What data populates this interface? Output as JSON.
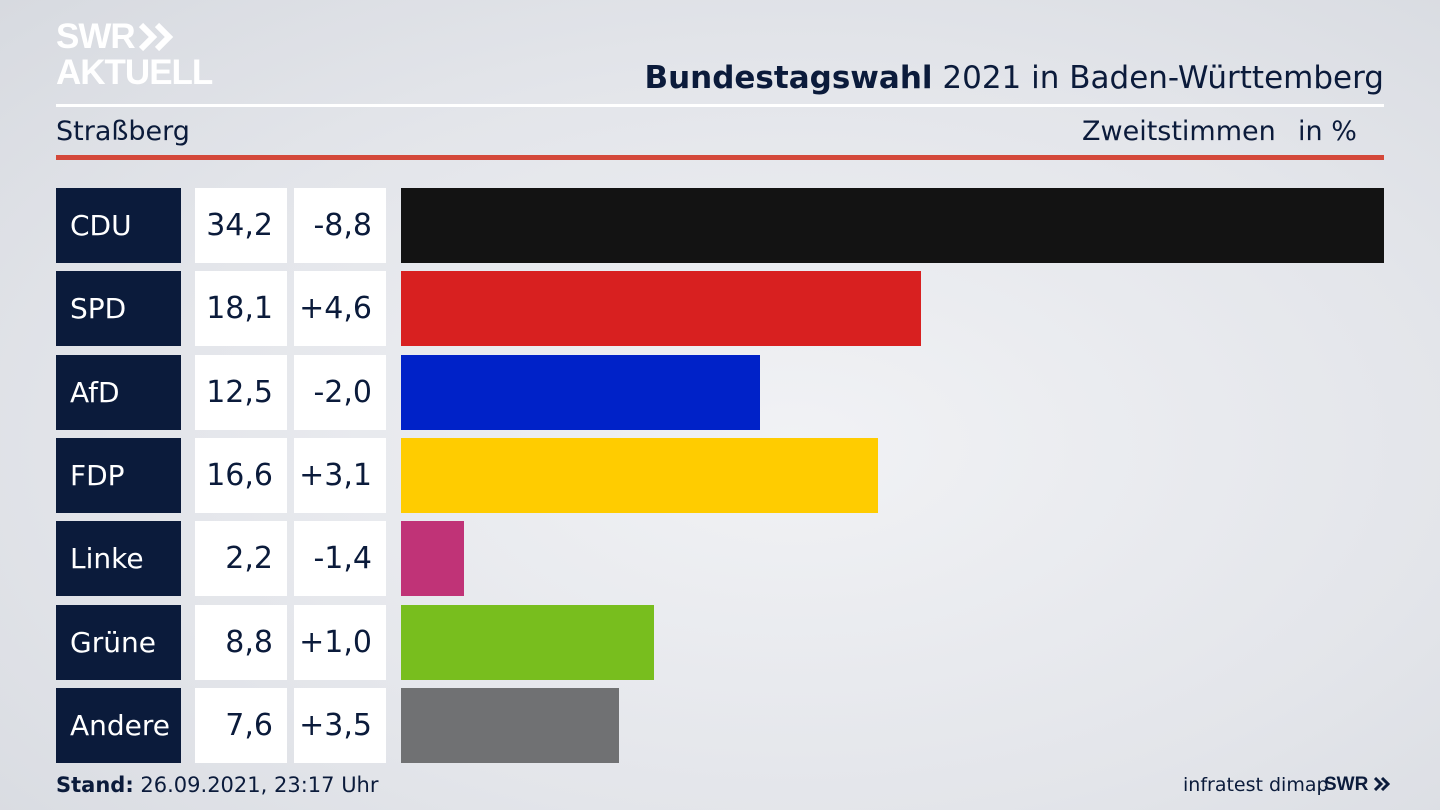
{
  "logo": {
    "line1": "SWR",
    "line2": "AKTUELL"
  },
  "header": {
    "title_bold": "Bundestagswahl",
    "title_rest": "2021 in Baden-Württemberg",
    "place": "Straßberg",
    "vote_type": "Zweitstimmen",
    "unit": "in %"
  },
  "colors": {
    "navy": "#0b1b3b",
    "accent_rule": "#d4483a"
  },
  "chart_data": {
    "type": "bar",
    "orientation": "horizontal",
    "categories": [
      "CDU",
      "SPD",
      "AfD",
      "FDP",
      "Linke",
      "Grüne",
      "Andere"
    ],
    "values": [
      34.2,
      18.1,
      12.5,
      16.6,
      2.2,
      8.8,
      7.6
    ],
    "value_labels": [
      "34,2",
      "18,1",
      "12,5",
      "16,6",
      "2,2",
      "8,8",
      "7,6"
    ],
    "changes": [
      "-8,8",
      "+4,6",
      "-2,0",
      "+3,1",
      "-1,4",
      "+1,0",
      "+3,5"
    ],
    "colors": [
      "#131313",
      "#d82020",
      "#0022c8",
      "#ffcc00",
      "#c03377",
      "#78be1e",
      "#707173"
    ],
    "xlim": [
      0,
      34.2
    ]
  },
  "footer": {
    "stand_label": "Stand:",
    "stand_value": "26.09.2021, 23:17 Uhr",
    "source": "infratest dimap",
    "brand": "SWR"
  }
}
